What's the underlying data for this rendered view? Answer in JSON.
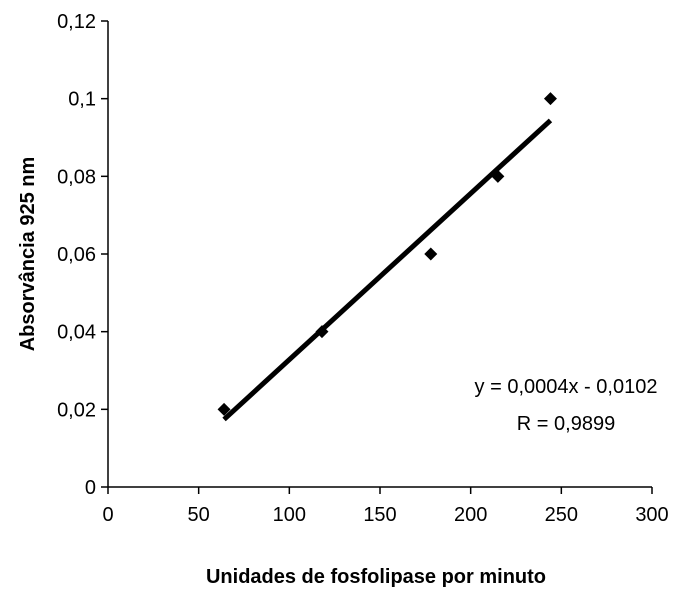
{
  "chart_data": {
    "type": "scatter",
    "title": "",
    "xlabel": "Unidades de fosfolipase por minuto",
    "ylabel": "Absorvância 925 nm",
    "xlim": [
      0,
      300
    ],
    "ylim": [
      0,
      0.12
    ],
    "x_ticks": [
      "0",
      "50",
      "100",
      "150",
      "200",
      "250",
      "300"
    ],
    "y_ticks": [
      "0",
      "0,02",
      "0,04",
      "0,06",
      "0,08",
      "0,1",
      "0,12"
    ],
    "grid": false,
    "legend": "none",
    "marker": "diamond",
    "series": [
      {
        "x": [
          64,
          118,
          178,
          215,
          244
        ],
        "y": [
          0.02,
          0.04,
          0.06,
          0.08,
          0.1
        ]
      }
    ],
    "trendline": {
      "x": [
        64,
        244
      ],
      "y": [
        0.0174,
        0.0944
      ]
    },
    "annotations": [
      "y = 0,0004x - 0,0102",
      "R = 0,9899"
    ],
    "colors": {
      "marker": "#000000",
      "line": "#000000"
    }
  }
}
